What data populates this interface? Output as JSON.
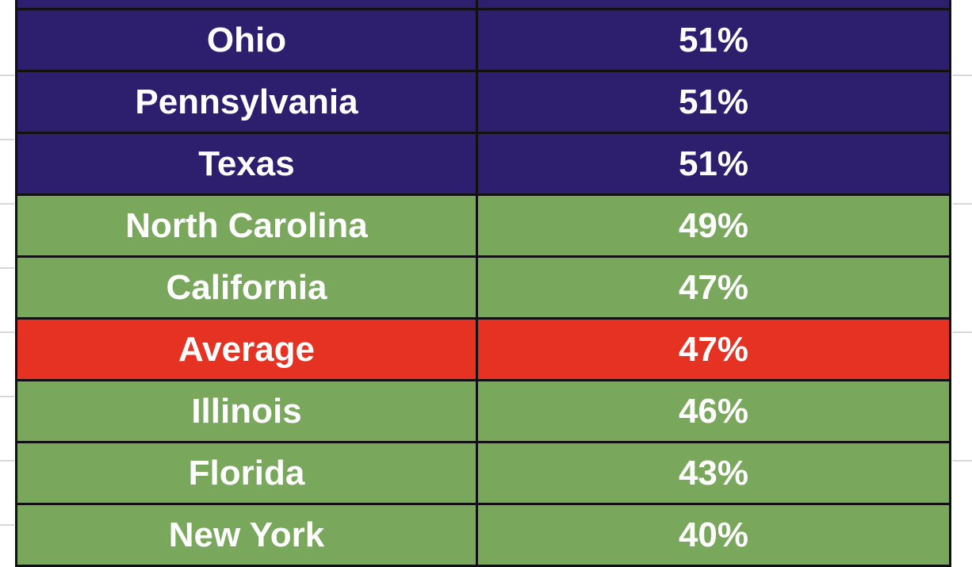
{
  "table": {
    "rows": [
      [
        "Ohio",
        "51%"
      ],
      [
        "Pennsylvania",
        "51%"
      ],
      [
        "Texas",
        "51%"
      ],
      [
        "North Carolina",
        "49%"
      ],
      [
        "California",
        "47%"
      ],
      [
        "Average",
        "47%"
      ],
      [
        "Illinois",
        "46%"
      ],
      [
        "Florida",
        "43%"
      ],
      [
        "New York",
        "40%"
      ]
    ]
  }
}
